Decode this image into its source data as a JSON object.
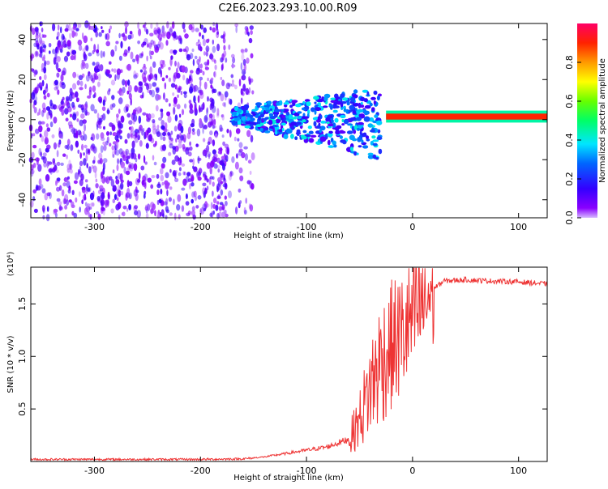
{
  "title": "C2E6.2023.293.10.00.R09",
  "chart_data": [
    {
      "type": "heatmap",
      "xlabel": "Height of straight line (km)",
      "ylabel": "Frequency (Hz)",
      "xlim": [
        -360,
        127
      ],
      "ylim": [
        -49,
        48
      ],
      "x_ticks": [
        "-300",
        "-200",
        "-100",
        "0",
        "100"
      ],
      "y_ticks": [
        "-40",
        "-20",
        "0",
        "20",
        "40"
      ],
      "colorbar": {
        "label": "Normalized spectral amplitude",
        "range": [
          0.0,
          1.0
        ],
        "ticks": [
          "0.0",
          "0.2",
          "0.4",
          "0.6",
          "0.8"
        ],
        "colormap": "rainbow (violet to magenta)"
      },
      "features": [
        {
          "x_range": [
            -360,
            -150
          ],
          "y_range": [
            -49,
            48
          ],
          "amplitude": 0.1
        },
        {
          "x_range": [
            -170,
            -30
          ],
          "y_range": [
            -22,
            17
          ],
          "amplitude": 0.3
        },
        {
          "x_range": [
            -25,
            127
          ],
          "y_range": [
            0,
            3
          ],
          "amplitude": 0.9
        }
      ]
    },
    {
      "type": "line",
      "xlabel": "Height of straight line (km)",
      "ylabel": "SNR (10 * v/v)",
      "y_scale_label": "(x10⁴)",
      "xlim": [
        -360,
        127
      ],
      "ylim": [
        0,
        1.85
      ],
      "x_ticks": [
        "-300",
        "-200",
        "-100",
        "0",
        "100"
      ],
      "y_ticks": [
        "0.5",
        "1.0",
        "1.5"
      ],
      "color": "#ee3333",
      "series": [
        {
          "x": [
            -360,
            -300,
            -250,
            -200,
            -160,
            -140,
            -120,
            -100,
            -80,
            -60,
            -50,
            -40,
            -30,
            -20,
            -10,
            0,
            10,
            20,
            30,
            50,
            70,
            100,
            127
          ],
          "y": [
            0.02,
            0.02,
            0.02,
            0.02,
            0.025,
            0.04,
            0.07,
            0.1,
            0.13,
            0.2,
            0.4,
            0.7,
            0.95,
            1.1,
            1.2,
            1.35,
            1.5,
            1.65,
            1.72,
            1.73,
            1.72,
            1.71,
            1.69
          ]
        }
      ]
    }
  ]
}
